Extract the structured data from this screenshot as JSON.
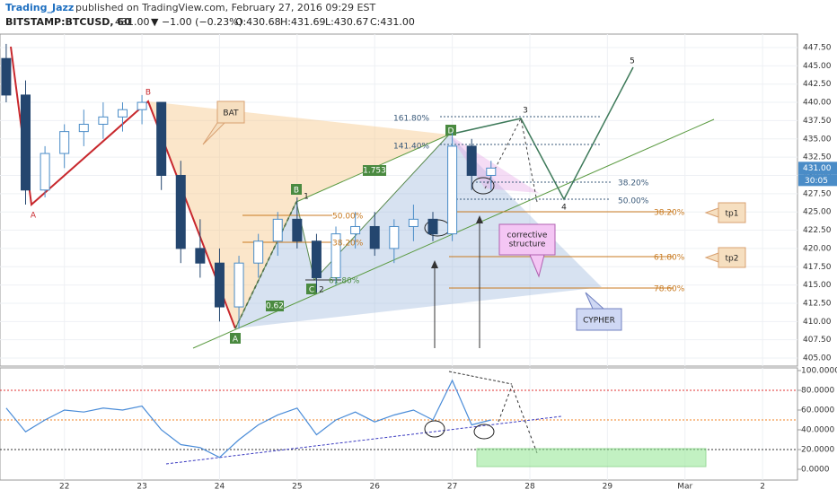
{
  "header": {
    "author": "Trading_Jazz",
    "published": "published on TradingView.com, February 27, 2016 09:29 EST",
    "symbol": "BITSTAMP:BTCUSD, 60",
    "last": "431.00",
    "change": "▼ −1.00 (−0.23%)",
    "ohlc": [
      "O:430.68",
      "H:431.69",
      "L:430.67",
      "C:431.00"
    ]
  },
  "chart_data": [
    {
      "type": "candlestick",
      "up_color": "#4a8cc7",
      "down_color": "#24466f",
      "grid": true,
      "price_label": "431.00",
      "countdown": "30:05",
      "x": [
        21.25,
        21.5,
        21.75,
        22.0,
        22.25,
        22.5,
        22.75,
        23.0,
        23.25,
        23.5,
        23.75,
        24.0,
        24.25,
        24.5,
        24.75,
        25.0,
        25.25,
        25.5,
        25.75,
        26.0,
        26.25,
        26.5,
        26.75,
        27.0,
        27.25,
        27.5
      ],
      "open": [
        446,
        441,
        428,
        433,
        436,
        437,
        438,
        439,
        440,
        430,
        420,
        418,
        412,
        418,
        421,
        424,
        421,
        416,
        422,
        423,
        420,
        423,
        424,
        422,
        434,
        430
      ],
      "high": [
        448,
        443,
        434,
        437,
        439,
        440,
        440,
        441,
        440,
        432,
        424,
        420,
        419,
        422,
        425,
        427,
        422,
        423,
        425,
        425,
        424,
        426,
        425,
        436,
        435,
        432
      ],
      "low": [
        440,
        426,
        427,
        431,
        434,
        435,
        436,
        437,
        428,
        418,
        416,
        410,
        409,
        416,
        419,
        420,
        414,
        415,
        420,
        419,
        418,
        421,
        421,
        421,
        428,
        428
      ],
      "close": [
        441,
        428,
        433,
        436,
        437,
        438,
        439,
        440,
        430,
        420,
        418,
        412,
        418,
        421,
        424,
        421,
        416,
        422,
        423,
        420,
        423,
        424,
        422,
        434,
        430,
        431
      ],
      "xlim": [
        21.17,
        31.45
      ],
      "xticks": [
        22,
        23,
        24,
        25,
        26,
        27,
        28,
        29,
        {
          "value": 30,
          "label": "Mar"
        },
        {
          "value": 31,
          "label": "2"
        }
      ],
      "ylim": [
        403.9,
        449.34
      ],
      "yticks": [
        {
          "value": 405,
          "label": "405.00"
        },
        {
          "value": 407.5,
          "label": "407.50"
        },
        {
          "value": 410,
          "label": "410.00"
        },
        {
          "value": 412.5,
          "label": "412.50"
        },
        {
          "value": 415,
          "label": "415.00"
        },
        {
          "value": 417.5,
          "label": "417.50"
        },
        {
          "value": 420,
          "label": "420.00"
        },
        {
          "value": 422.5,
          "label": "422.50"
        },
        {
          "value": 425,
          "label": "425.00"
        },
        {
          "value": 427.5,
          "label": "427.50"
        },
        {
          "value": 430,
          "label": "430.00"
        },
        {
          "value": 432.5,
          "label": "432.50"
        },
        {
          "value": 435,
          "label": "435.00"
        },
        {
          "value": 437.5,
          "label": "437.50"
        },
        {
          "value": 440,
          "label": "440.00"
        },
        {
          "value": 442.5,
          "label": "442.50"
        },
        {
          "value": 445,
          "label": "445.00"
        },
        {
          "value": 447.5,
          "label": "447.50"
        }
      ]
    },
    {
      "type": "line",
      "color": "#4a8cd8",
      "x": [
        21.25,
        21.5,
        21.75,
        22.0,
        22.25,
        22.5,
        22.75,
        23.0,
        23.25,
        23.5,
        23.75,
        24.0,
        24.25,
        24.5,
        24.75,
        25.0,
        25.25,
        25.5,
        25.75,
        26.0,
        26.25,
        26.5,
        26.75,
        27.0,
        27.25,
        27.5
      ],
      "values": [
        62,
        38,
        50,
        60,
        58,
        62,
        60,
        64,
        40,
        25,
        22,
        12,
        30,
        45,
        55,
        62,
        35,
        50,
        58,
        48,
        55,
        60,
        50,
        90,
        45,
        50
      ],
      "levels": [
        {
          "value": 80,
          "color": "#e03030"
        },
        {
          "value": 50,
          "color": "#f08020"
        },
        {
          "value": 20,
          "color": "#333333"
        }
      ],
      "ylim": [
        -10.9,
        102.7
      ],
      "yticks": [
        {
          "value": 0,
          "label": "0.0000"
        },
        {
          "value": 20,
          "label": "20.0000"
        },
        {
          "value": 40,
          "label": "40.0000"
        },
        {
          "value": 60,
          "label": "60.0000"
        },
        {
          "value": 80,
          "label": "80.0000"
        },
        {
          "value": 100,
          "label": "100.0000"
        }
      ]
    }
  ],
  "annotations": [
    "A",
    "B",
    "A",
    "B",
    "C",
    "D",
    "1",
    "2",
    "3",
    "4",
    "5",
    "BAT",
    "CYPHER",
    "corrective",
    "structure",
    "tp1",
    "tp2",
    "161.80%",
    "141.40%",
    "38.20%",
    "50.00%",
    "38.20%",
    "61.80%",
    "78.60%",
    "50.00%",
    "38.20%",
    "61.80%",
    "1.753",
    "0.62"
  ]
}
